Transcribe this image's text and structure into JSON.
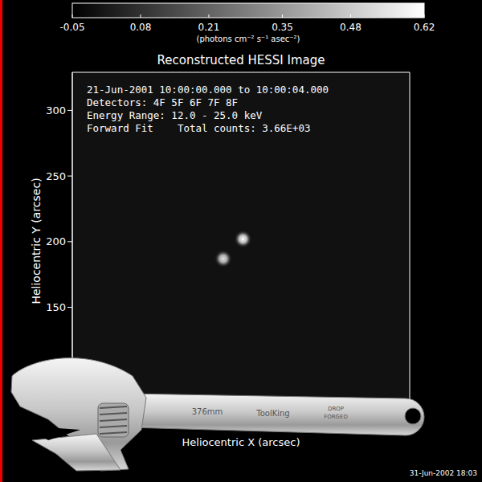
{
  "chart_data": {
    "type": "image",
    "title": "Reconstructed HESSI Image",
    "annotations": [
      "21-Jun-2001 10:00:00.000 to 10:00:04.000",
      "Detectors: 4F 5F 6F 7F 8F",
      "Energy Range: 12.0 - 25.0 keV",
      "Forward Fit    Total counts: 3.66E+03"
    ],
    "xlabel": "Heliocentric X (arcsec)",
    "ylabel": "Heliocentric Y (arcsec)",
    "xlim": [
      -200,
      57
    ],
    "ylim": [
      72,
      329
    ],
    "yticks": [
      150,
      200,
      250,
      300
    ],
    "tick_labels": "y",
    "sources": [
      {
        "x": -70,
        "y": 202,
        "flux": 0.62
      },
      {
        "x": -85,
        "y": 187,
        "flux": 0.55
      }
    ],
    "colorbar": {
      "range": [
        -0.05,
        0.62
      ],
      "ticks": [
        -0.05,
        0.08,
        0.21,
        0.35,
        0.48,
        0.62
      ],
      "label": "(photons cm⁻² s⁻¹ asec⁻²)"
    },
    "footer": "31-Jun-2002 18:03",
    "overlay_texts": [
      "376mm",
      "ToolKing",
      "DROP",
      "FORGED"
    ]
  }
}
